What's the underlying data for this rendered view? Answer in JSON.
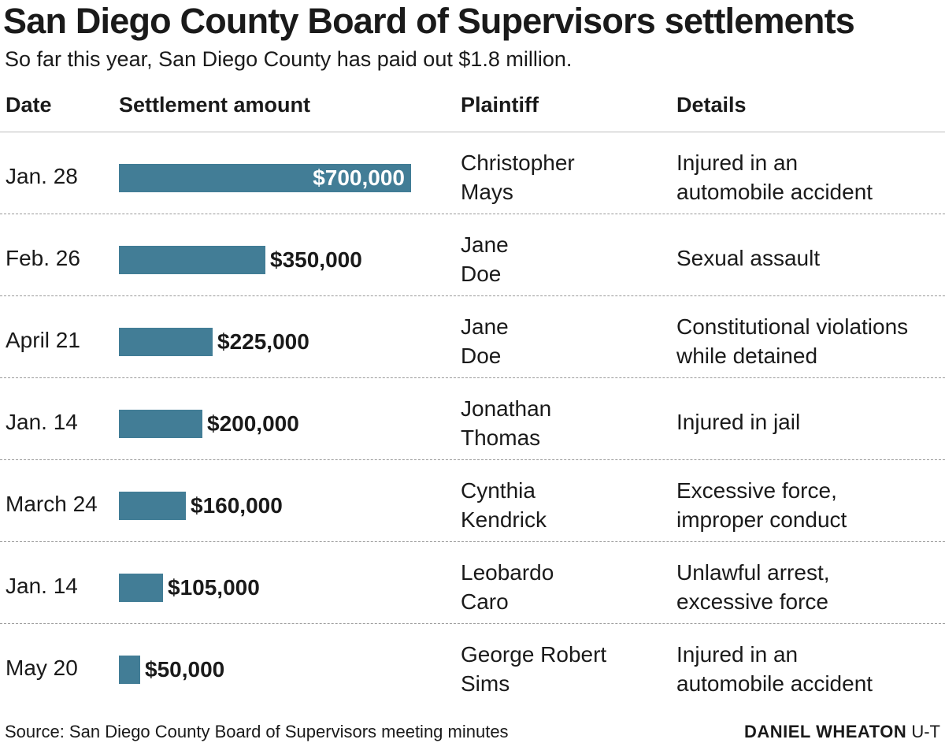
{
  "title": "San Diego County Board of Supervisors settlements",
  "subtitle": "So far this year, San Diego County has paid out $1.8 million.",
  "headers": {
    "date": "Date",
    "amount": "Settlement amount",
    "plaintiff": "Plaintiff",
    "details": "Details"
  },
  "colors": {
    "bar": "#427d96",
    "text": "#1a1a1a"
  },
  "chart_data": {
    "type": "bar",
    "orientation": "horizontal",
    "title": "San Diego County Board of Supervisors settlements",
    "subtitle": "So far this year, San Diego County has paid out $1.8 million.",
    "categories": [
      "Jan. 28",
      "Feb. 26",
      "April 21",
      "Jan. 14",
      "March 24",
      "Jan. 14",
      "May 20"
    ],
    "values": [
      700000,
      350000,
      225000,
      200000,
      160000,
      105000,
      50000
    ],
    "value_labels": [
      "$700,000",
      "$350,000",
      "$225,000",
      "$200,000",
      "$160,000",
      "$105,000",
      "$50,000"
    ],
    "xlim": [
      0,
      700000
    ],
    "grid": false,
    "rows": [
      {
        "date": "Jan. 28",
        "amount": 700000,
        "label": "$700,000",
        "plaintiff": [
          "Christopher",
          "Mays"
        ],
        "details": [
          "Injured in an",
          "automobile accident"
        ]
      },
      {
        "date": "Feb. 26",
        "amount": 350000,
        "label": "$350,000",
        "plaintiff": [
          "Jane",
          "Doe"
        ],
        "details": [
          "Sexual assault"
        ]
      },
      {
        "date": "April 21",
        "amount": 225000,
        "label": "$225,000",
        "plaintiff": [
          "Jane",
          "Doe"
        ],
        "details": [
          "Constitutional violations",
          "while detained"
        ]
      },
      {
        "date": "Jan. 14",
        "amount": 200000,
        "label": "$200,000",
        "plaintiff": [
          "Jonathan",
          "Thomas"
        ],
        "details": [
          "Injured in jail"
        ]
      },
      {
        "date": "March 24",
        "amount": 160000,
        "label": "$160,000",
        "plaintiff": [
          "Cynthia",
          "Kendrick"
        ],
        "details": [
          "Excessive force,",
          "improper conduct"
        ]
      },
      {
        "date": "Jan. 14",
        "amount": 105000,
        "label": "$105,000",
        "plaintiff": [
          "Leobardo",
          "Caro"
        ],
        "details": [
          "Unlawful arrest,",
          "excessive force"
        ]
      },
      {
        "date": "May 20",
        "amount": 50000,
        "label": "$50,000",
        "plaintiff": [
          "George Robert",
          "Sims"
        ],
        "details": [
          "Injured in an",
          "automobile accident"
        ]
      }
    ]
  },
  "footer": {
    "source": "Source: San Diego County Board of Supervisors meeting minutes",
    "credit_name": "DANIEL WHEATON",
    "credit_org": "U-T"
  }
}
